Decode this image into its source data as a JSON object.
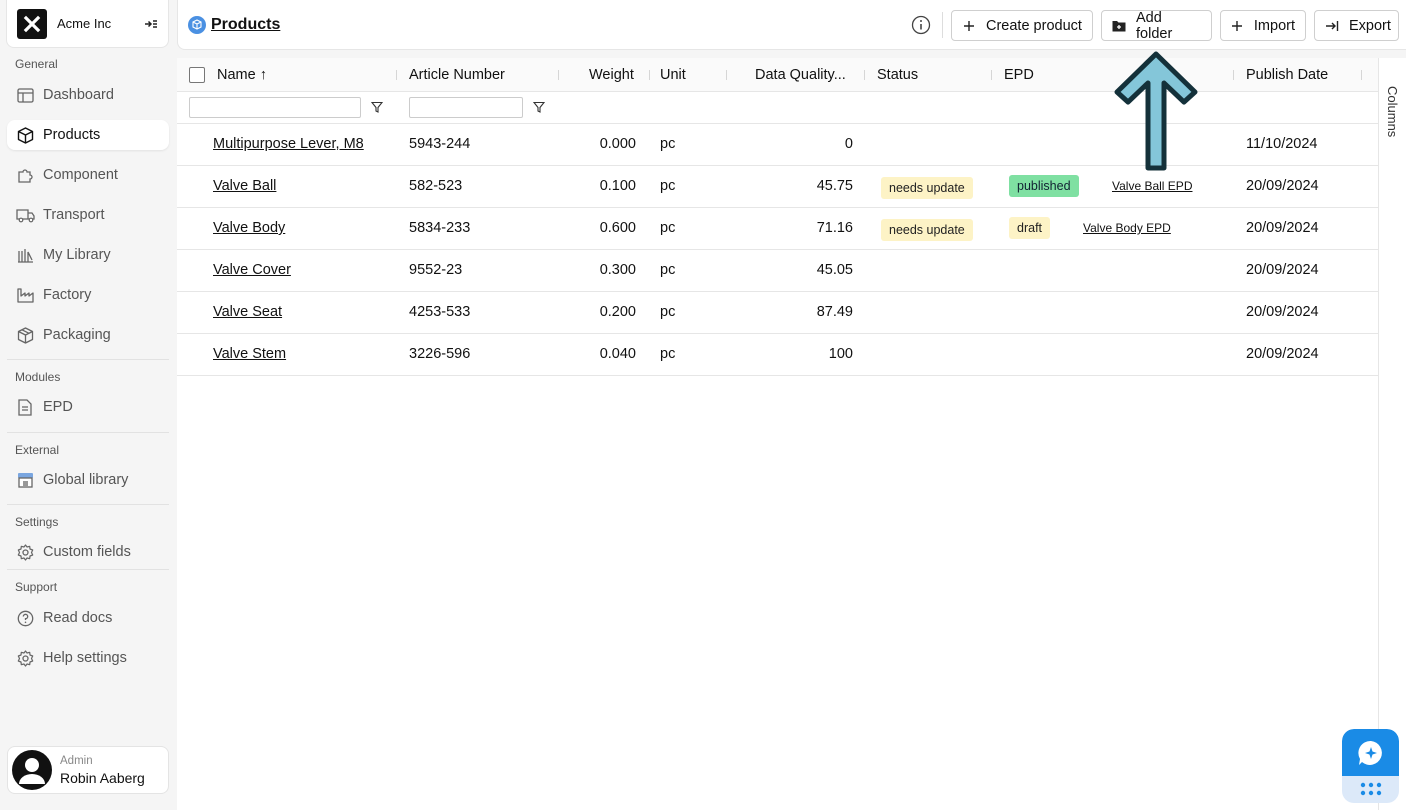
{
  "brand": {
    "name": "Acme Inc"
  },
  "sidebar": {
    "sections": {
      "general": "General",
      "modules": "Modules",
      "external": "External",
      "settings": "Settings",
      "support": "Support"
    },
    "items": [
      {
        "label": "Dashboard",
        "icon": "dashboard-icon"
      },
      {
        "label": "Products",
        "icon": "box-icon",
        "active": true
      },
      {
        "label": "Component",
        "icon": "puzzle-icon"
      },
      {
        "label": "Transport",
        "icon": "truck-icon"
      },
      {
        "label": "My Library",
        "icon": "library-icon"
      },
      {
        "label": "Factory",
        "icon": "factory-icon"
      },
      {
        "label": "Packaging",
        "icon": "package-icon"
      },
      {
        "label": "EPD",
        "icon": "document-icon"
      },
      {
        "label": "Global library",
        "icon": "store-icon"
      },
      {
        "label": "Custom fields",
        "icon": "gear-icon"
      },
      {
        "label": "Read docs",
        "icon": "question-icon"
      },
      {
        "label": "Help settings",
        "icon": "gear-icon"
      }
    ]
  },
  "user": {
    "role": "Admin",
    "name": "Robin Aaberg"
  },
  "header": {
    "title": "Products",
    "buttons": {
      "create": "Create product",
      "add_folder": "Add folder",
      "import": "Import",
      "export": "Export"
    }
  },
  "table": {
    "columns": {
      "name": "Name",
      "article": "Article Number",
      "weight": "Weight",
      "unit": "Unit",
      "dq": "Data Quality...",
      "status": "Status",
      "epd": "EPD",
      "publish": "Publish Date"
    },
    "columns_panel": "Columns",
    "rows": [
      {
        "name": "Multipurpose Lever, M8",
        "article": "5943-244",
        "weight": "0.000",
        "unit": "pc",
        "dq": "0",
        "status": "",
        "epd_state": "",
        "epd_link": "",
        "date": "11/10/2024"
      },
      {
        "name": "Valve Ball",
        "article": "582-523",
        "weight": "0.100",
        "unit": "pc",
        "dq": "45.75",
        "status": "needs update",
        "epd_state": "published",
        "epd_link": "Valve Ball EPD",
        "date": "20/09/2024"
      },
      {
        "name": "Valve Body",
        "article": "5834-233",
        "weight": "0.600",
        "unit": "pc",
        "dq": "71.16",
        "status": "needs update",
        "epd_state": "draft",
        "epd_link": "Valve Body EPD",
        "date": "20/09/2024"
      },
      {
        "name": "Valve Cover",
        "article": "9552-23",
        "weight": "0.300",
        "unit": "pc",
        "dq": "45.05",
        "status": "",
        "epd_state": "",
        "epd_link": "",
        "date": "20/09/2024"
      },
      {
        "name": "Valve Seat",
        "article": "4253-533",
        "weight": "0.200",
        "unit": "pc",
        "dq": "87.49",
        "status": "",
        "epd_state": "",
        "epd_link": "",
        "date": "20/09/2024"
      },
      {
        "name": "Valve Stem",
        "article": "3226-596",
        "weight": "0.040",
        "unit": "pc",
        "dq": "100",
        "status": "",
        "epd_state": "",
        "epd_link": "",
        "date": "20/09/2024"
      }
    ]
  },
  "colors": {
    "accent": "#1a8be6",
    "published": "#7fe0a2",
    "warning": "#fdf3c6",
    "arrow": "#7ec3d6"
  }
}
